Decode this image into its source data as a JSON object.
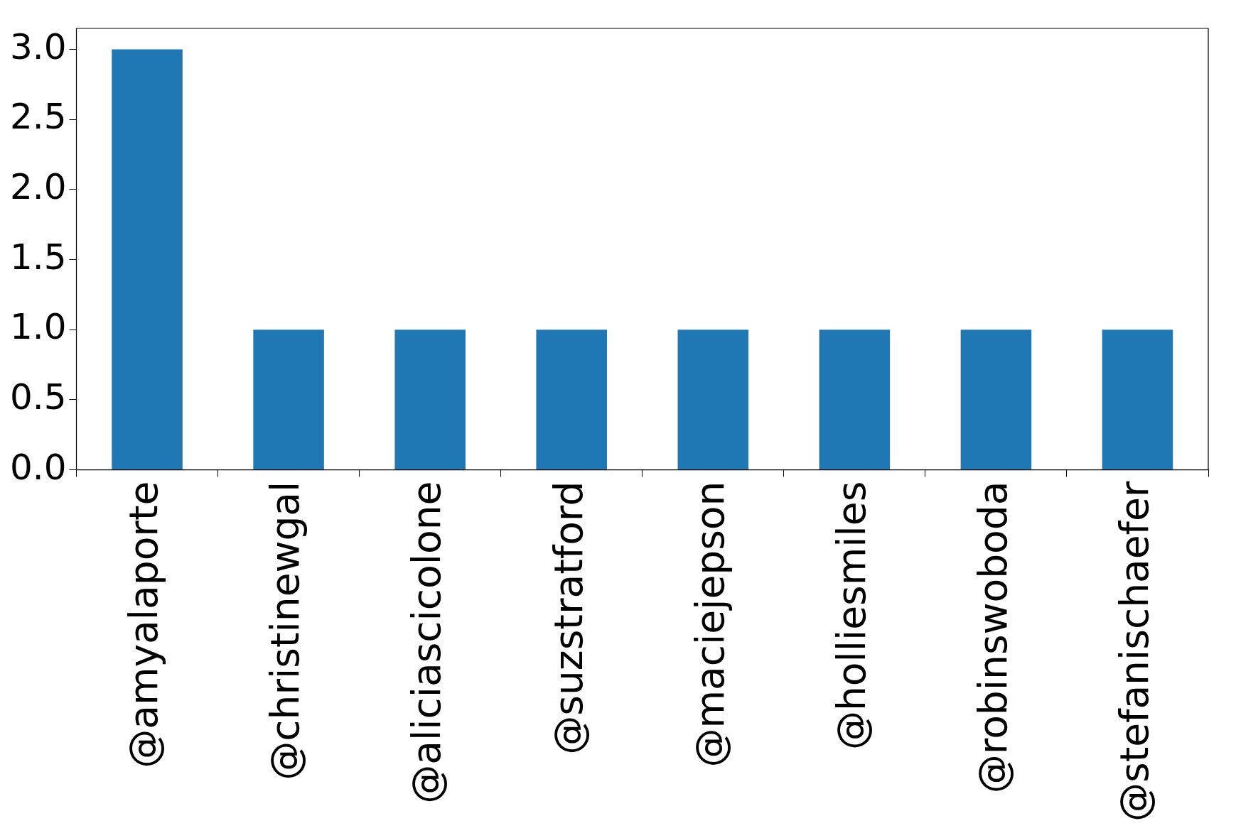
{
  "chart_data": {
    "type": "bar",
    "categories": [
      "@amyalaporte",
      "@christinewgal",
      "@aliciascicolone",
      "@suzstratford",
      "@maciejepson",
      "@holliesmiles",
      "@robinswoboda",
      "@stefanischaefer"
    ],
    "values": [
      3,
      1,
      1,
      1,
      1,
      1,
      1,
      1
    ],
    "color": "#1f77b4",
    "ylim": [
      0,
      3.15
    ],
    "yticks": [
      {
        "value": 0,
        "label": "0.0"
      },
      {
        "value": 0.5,
        "label": "0.5"
      },
      {
        "value": 1,
        "label": "1.0"
      },
      {
        "value": 1.5,
        "label": "1.5"
      },
      {
        "value": 2,
        "label": "2.0"
      },
      {
        "value": 2.5,
        "label": "2.5"
      },
      {
        "value": 3,
        "label": "3.0"
      }
    ],
    "grid": false,
    "legend": false
  }
}
